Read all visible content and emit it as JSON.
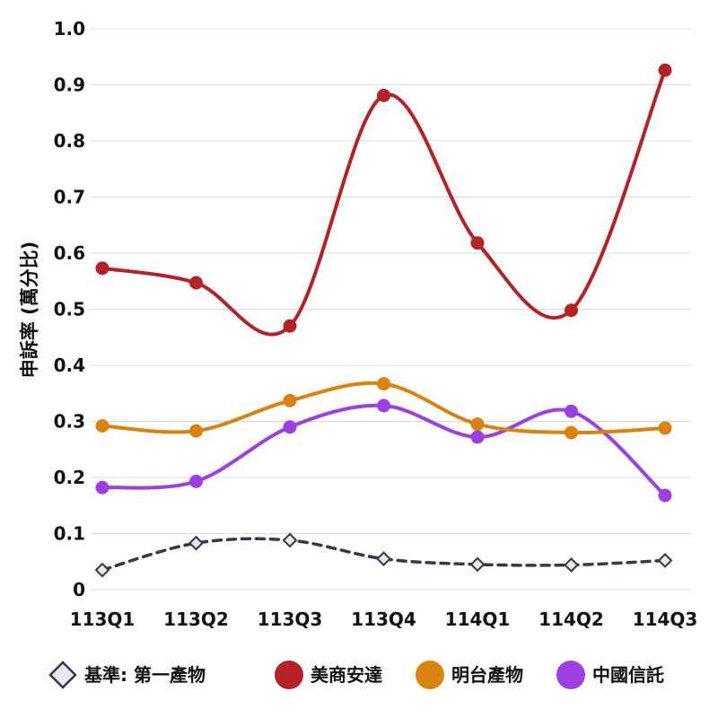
{
  "chart_data": {
    "type": "line",
    "title": "",
    "xlabel": "",
    "ylabel": "申訴率 (萬分比)",
    "ylim": [
      0,
      1.0
    ],
    "yticks": [
      "0",
      "0.1",
      "0.2",
      "0.3",
      "0.4",
      "0.5",
      "0.6",
      "0.7",
      "0.8",
      "0.9",
      "1.0"
    ],
    "categories": [
      "113Q1",
      "113Q2",
      "113Q3",
      "113Q4",
      "114Q1",
      "114Q2",
      "114Q3"
    ],
    "grid": "horizontal",
    "legend_position": "bottom",
    "series": [
      {
        "name": "基準: 第一產物",
        "values": [
          0.035,
          0.083,
          0.088,
          0.055,
          0.045,
          0.044,
          0.052
        ],
        "color": "#2f3a4a",
        "marker": "diamond",
        "line_style": "dashed"
      },
      {
        "name": "美商安達",
        "values": [
          0.573,
          0.547,
          0.47,
          0.881,
          0.618,
          0.498,
          0.926
        ],
        "color": "#b52226",
        "marker": "circle",
        "line_style": "solid"
      },
      {
        "name": "明台產物",
        "values": [
          0.292,
          0.283,
          0.337,
          0.367,
          0.295,
          0.28,
          0.288
        ],
        "color": "#d9820f",
        "marker": "circle",
        "line_style": "solid"
      },
      {
        "name": "中國信託",
        "values": [
          0.182,
          0.193,
          0.29,
          0.328,
          0.272,
          0.318,
          0.168
        ],
        "color": "#9b3fe0",
        "marker": "circle",
        "line_style": "solid"
      }
    ]
  }
}
